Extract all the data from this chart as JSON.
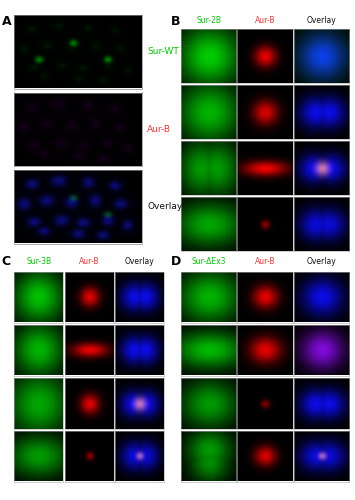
{
  "figure_label_A": "A",
  "figure_label_B": "B",
  "figure_label_C": "C",
  "figure_label_D": "D",
  "panel_A_labels": [
    "Sur-WT",
    "Aur-B",
    "Overlay"
  ],
  "panel_A_label_colors": [
    "#00cc00",
    "#ff3333",
    "#111111"
  ],
  "panel_B_col_labels": [
    "Sur-2B",
    "Aur-B",
    "Overlay"
  ],
  "panel_B_col_colors": [
    "#00cc00",
    "#ff3333",
    "#111111"
  ],
  "panel_C_col_labels": [
    "Sur-3B",
    "Aur-B",
    "Overlay"
  ],
  "panel_C_col_colors": [
    "#00cc00",
    "#ff3333",
    "#111111"
  ],
  "panel_D_col_labels": [
    "Sur-ΔEx3",
    "Aur-B",
    "Overlay"
  ],
  "panel_D_col_colors": [
    "#00cc00",
    "#ff3333",
    "#111111"
  ],
  "bg_color": "#ffffff"
}
